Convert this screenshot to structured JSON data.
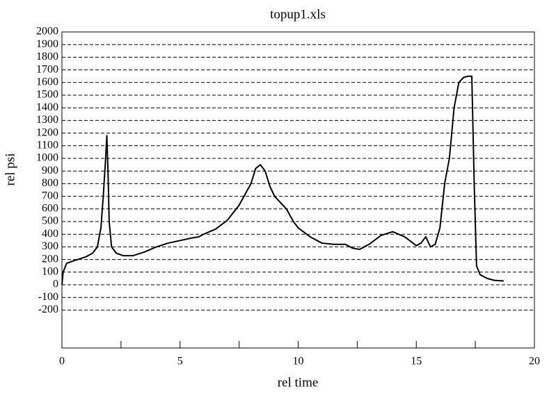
{
  "chart_data": {
    "type": "line",
    "title": "topup1.xls",
    "x_label": "rel time",
    "y_label": "rel psi",
    "xlim": [
      0,
      20
    ],
    "xticks": [
      0,
      5,
      10,
      15,
      20
    ],
    "xminorticks": [
      2.5,
      7.5,
      12.5,
      17.5
    ],
    "ylim": [
      -500,
      2000
    ],
    "yticks": [
      -200,
      -100,
      0,
      100,
      200,
      300,
      400,
      500,
      600,
      700,
      800,
      900,
      1000,
      1100,
      1200,
      1300,
      1400,
      1500,
      1600,
      1700,
      1800,
      1900,
      2000
    ],
    "grid": true,
    "series": [
      {
        "color": "#000000",
        "x": [
          0,
          0.05,
          0.2,
          0.5,
          1.0,
          1.3,
          1.5,
          1.65,
          1.75,
          1.85,
          1.9,
          1.95,
          2.0,
          2.1,
          2.3,
          2.6,
          3.0,
          3.5,
          4.0,
          4.5,
          5.0,
          5.5,
          5.8,
          6.0,
          6.5,
          7.0,
          7.5,
          8.0,
          8.2,
          8.4,
          8.6,
          8.8,
          9.0,
          9.5,
          9.8,
          10.0,
          10.5,
          11.0,
          11.5,
          12.0,
          12.3,
          12.6,
          13.0,
          13.5,
          14.0,
          14.5,
          15.0,
          15.2,
          15.4,
          15.6,
          15.8,
          16.0,
          16.2,
          16.4,
          16.6,
          16.8,
          17.0,
          17.2,
          17.35,
          17.45,
          17.55,
          17.7,
          18.0,
          18.3,
          18.7
        ],
        "values": [
          0,
          100,
          170,
          190,
          220,
          250,
          300,
          450,
          700,
          1000,
          1180,
          900,
          500,
          300,
          250,
          230,
          230,
          260,
          300,
          330,
          350,
          370,
          380,
          400,
          440,
          510,
          630,
          800,
          920,
          950,
          900,
          780,
          700,
          600,
          500,
          450,
          380,
          330,
          320,
          320,
          290,
          280,
          320,
          390,
          420,
          380,
          310,
          330,
          380,
          300,
          320,
          450,
          800,
          1000,
          1400,
          1600,
          1640,
          1650,
          1650,
          800,
          150,
          80,
          50,
          35,
          30
        ]
      }
    ]
  }
}
